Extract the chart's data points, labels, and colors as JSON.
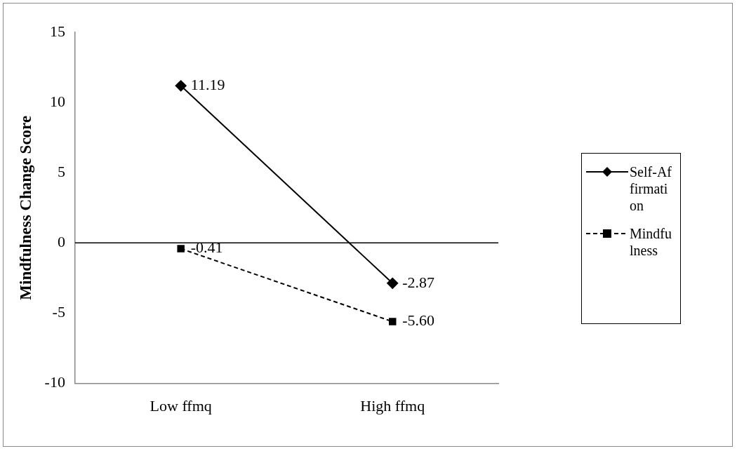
{
  "chart_data": {
    "type": "line",
    "ylabel": "Mindfulness Change Score",
    "categories": [
      "Low ffmq",
      "High ffmq"
    ],
    "series": [
      {
        "name": "Self-Affirmation",
        "color": "#000000",
        "values": [
          11.19,
          -2.87
        ],
        "value_labels": [
          "11.19",
          "-2.87"
        ],
        "marker": "diamond",
        "line_style": "solid"
      },
      {
        "name": "Mindfulness",
        "color": "#000000",
        "values": [
          -0.41,
          -5.6
        ],
        "value_labels": [
          "-0.41",
          "-5.60"
        ],
        "marker": "square",
        "line_style": "dashed"
      }
    ],
    "ylim": [
      -10,
      15
    ],
    "yticks": [
      -10,
      -5,
      0,
      5,
      10,
      15
    ],
    "grid": false,
    "legend": "right",
    "ref_lines": [
      {
        "axis": "y",
        "value": 0,
        "color": "#000000"
      }
    ]
  }
}
